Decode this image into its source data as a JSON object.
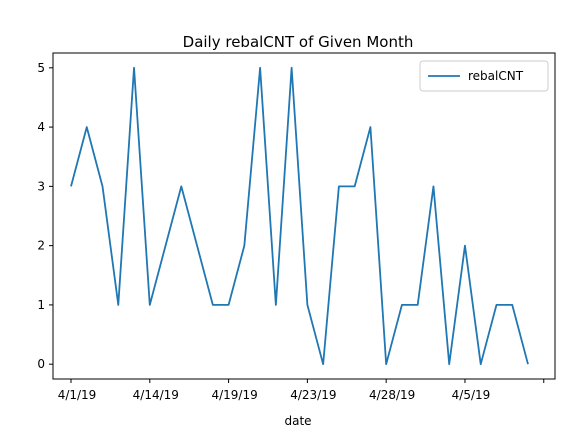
{
  "chart_data": {
    "type": "line",
    "title": "Daily rebalCNT of Given Month",
    "xlabel": "date",
    "ylabel": "",
    "x_tick_labels": [
      "4/1/19",
      "4/14/19",
      "4/19/19",
      "4/23/19",
      "4/28/19",
      "4/5/19"
    ],
    "y_ticks": [
      0,
      1,
      2,
      3,
      4,
      5
    ],
    "ylim": [
      -0.25,
      5.25
    ],
    "grid": false,
    "legend_position": "top-right",
    "series": [
      {
        "name": "rebalCNT",
        "color": "#1f77b4",
        "values": [
          3,
          4,
          3,
          1,
          5,
          1,
          2,
          3,
          2,
          1,
          1,
          2,
          5,
          1,
          5,
          1,
          0,
          3,
          3,
          4,
          0,
          1,
          1,
          3,
          0,
          2,
          0,
          1,
          1,
          0
        ]
      }
    ]
  }
}
